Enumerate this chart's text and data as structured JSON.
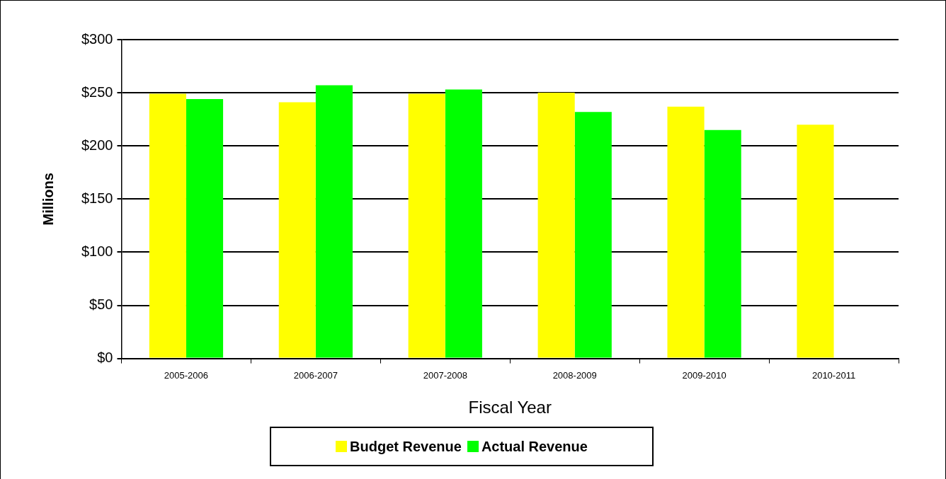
{
  "chart_data": {
    "type": "bar",
    "xlabel": "Fiscal Year",
    "ylabel": "Millions",
    "categories": [
      "2005-2006",
      "2006-2007",
      "2007-2008",
      "2008-2009",
      "2009-2010",
      "2010-2011"
    ],
    "series": [
      {
        "name": "Budget Revenue",
        "color": "#ffff00",
        "values": [
          249,
          241,
          249,
          250,
          237,
          220
        ]
      },
      {
        "name": "Actual Revenue",
        "color": "#00ff00",
        "values": [
          244,
          257,
          253,
          232,
          215,
          null
        ]
      }
    ],
    "ylim": [
      0,
      300
    ],
    "yticks": [
      {
        "value": 0,
        "label": "$0"
      },
      {
        "value": 50,
        "label": "$50"
      },
      {
        "value": 100,
        "label": "$100"
      },
      {
        "value": 150,
        "label": "$150"
      },
      {
        "value": 200,
        "label": "$200"
      },
      {
        "value": 250,
        "label": "$250"
      },
      {
        "value": 300,
        "label": "$300"
      }
    ],
    "grid": "y",
    "legend": "bottom"
  }
}
